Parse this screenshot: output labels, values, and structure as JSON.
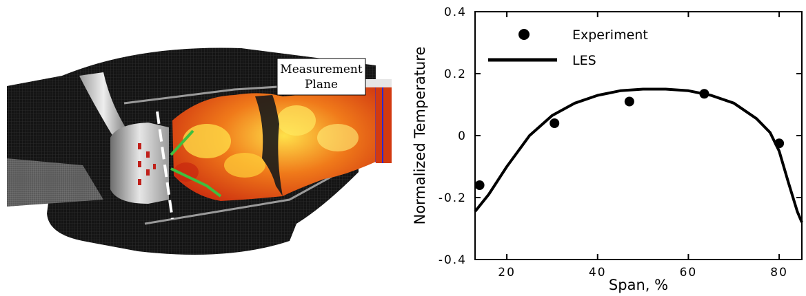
{
  "annotation": {
    "line1": "Measurement",
    "line2": "Plane"
  },
  "colors": {
    "flame_hot": "#ffe14a",
    "flame_mid": "#f07a1a",
    "flame_cool": "#c8260e",
    "mesh_dark": "#1a1a1a",
    "injector_green": "#3fbf3f",
    "plane_blue": "#2a2ad0"
  },
  "chart_data": {
    "type": "line",
    "xlabel": "Span, %",
    "ylabel": "Normalized Temperature",
    "xlim": [
      13,
      85
    ],
    "ylim": [
      -0.4,
      0.4
    ],
    "xticks": [
      "20",
      "40",
      "60",
      "80"
    ],
    "xtick_values": [
      20,
      40,
      60,
      80
    ],
    "yticks": [
      "0.4",
      "0.2",
      "0",
      "-0.2",
      "-0.4"
    ],
    "ytick_values": [
      0.4,
      0.2,
      0,
      -0.2,
      -0.4
    ],
    "legend_position": "top-left",
    "series": [
      {
        "name": "Experiment",
        "kind": "scatter",
        "x": [
          14,
          30.5,
          47,
          63.5,
          80
        ],
        "y": [
          -0.16,
          0.04,
          0.11,
          0.135,
          -0.025
        ]
      },
      {
        "name": "LES",
        "kind": "line",
        "x": [
          13,
          16,
          20,
          25,
          30,
          35,
          40,
          45,
          50,
          55,
          60,
          65,
          70,
          75,
          78,
          80,
          82,
          84,
          85
        ],
        "y": [
          -0.245,
          -0.19,
          -0.1,
          0,
          0.065,
          0.105,
          0.13,
          0.145,
          0.15,
          0.15,
          0.145,
          0.13,
          0.105,
          0.055,
          0.01,
          -0.05,
          -0.15,
          -0.245,
          -0.28
        ]
      }
    ]
  }
}
